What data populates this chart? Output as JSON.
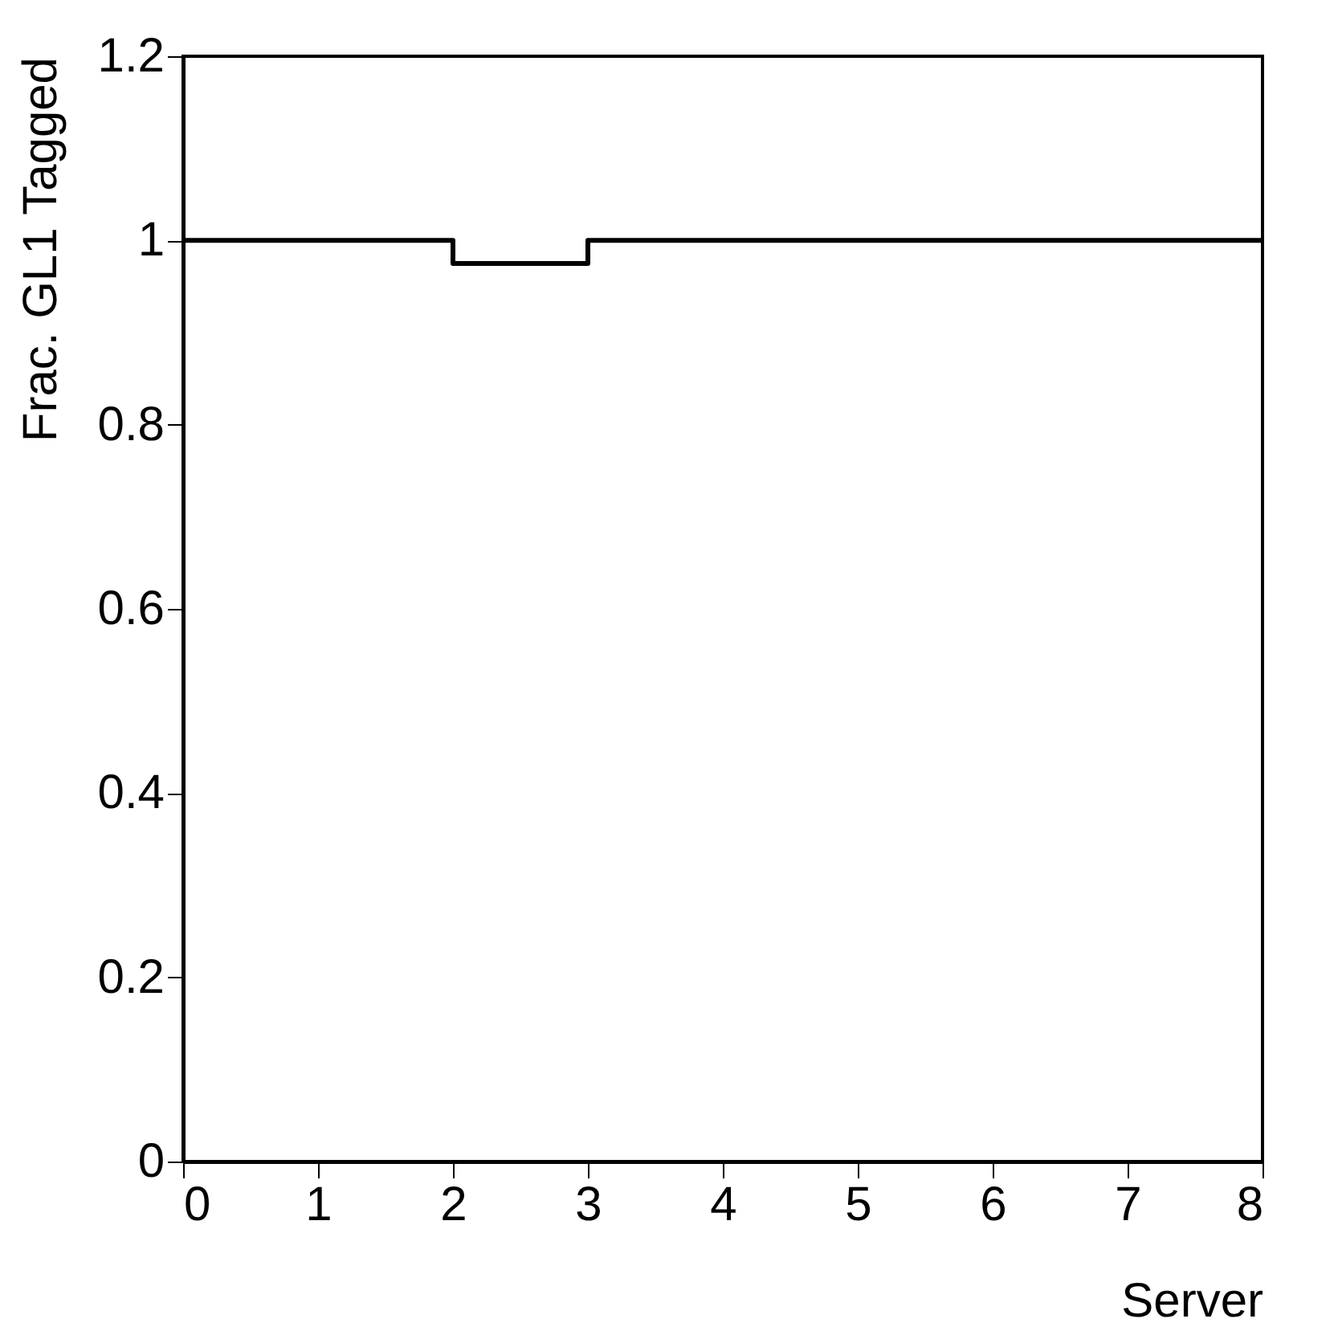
{
  "chart_data": {
    "type": "histogram",
    "bins": [
      0,
      1,
      2,
      3,
      4,
      5,
      6,
      7,
      8
    ],
    "values": [
      1,
      1,
      0.975,
      1,
      1,
      1,
      1,
      1
    ],
    "color": "#000000",
    "xlabel": "Server",
    "ylabel": "Frac. GL1 Tagged",
    "xlim": [
      0,
      8
    ],
    "xticks": [
      0,
      1,
      2,
      3,
      4,
      5,
      6,
      7,
      8
    ],
    "ylim": [
      0,
      1.2
    ],
    "yticks": [
      0,
      0.2,
      0.4,
      0.6,
      0.8,
      1,
      1.2
    ],
    "grid": false
  }
}
